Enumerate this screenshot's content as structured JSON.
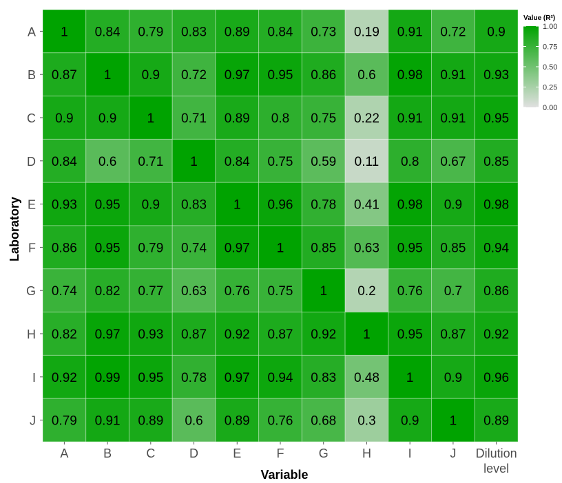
{
  "chart_data": {
    "type": "heatmap",
    "xlabel": "Variable",
    "ylabel": "Laboratory",
    "x_categories": [
      "A",
      "B",
      "C",
      "D",
      "E",
      "F",
      "G",
      "H",
      "I",
      "J",
      "Dilution level"
    ],
    "y_categories": [
      "A",
      "B",
      "C",
      "D",
      "E",
      "F",
      "G",
      "H",
      "I",
      "J"
    ],
    "values": [
      [
        1,
        0.84,
        0.79,
        0.83,
        0.89,
        0.84,
        0.73,
        0.19,
        0.91,
        0.72,
        0.9
      ],
      [
        0.87,
        1,
        0.9,
        0.72,
        0.97,
        0.95,
        0.86,
        0.6,
        0.98,
        0.91,
        0.93
      ],
      [
        0.9,
        0.9,
        1,
        0.71,
        0.89,
        0.8,
        0.75,
        0.22,
        0.91,
        0.91,
        0.95
      ],
      [
        0.84,
        0.6,
        0.71,
        1,
        0.84,
        0.75,
        0.59,
        0.11,
        0.8,
        0.67,
        0.85
      ],
      [
        0.93,
        0.95,
        0.9,
        0.83,
        1,
        0.96,
        0.78,
        0.41,
        0.98,
        0.9,
        0.98
      ],
      [
        0.86,
        0.95,
        0.79,
        0.74,
        0.97,
        1,
        0.85,
        0.63,
        0.95,
        0.85,
        0.94
      ],
      [
        0.74,
        0.82,
        0.77,
        0.63,
        0.76,
        0.75,
        1,
        0.2,
        0.76,
        0.7,
        0.86
      ],
      [
        0.82,
        0.97,
        0.93,
        0.87,
        0.92,
        0.87,
        0.92,
        1,
        0.95,
        0.87,
        0.92
      ],
      [
        0.92,
        0.99,
        0.95,
        0.78,
        0.97,
        0.94,
        0.83,
        0.48,
        1,
        0.9,
        0.96
      ],
      [
        0.79,
        0.91,
        0.89,
        0.6,
        0.89,
        0.76,
        0.68,
        0.3,
        0.9,
        1,
        0.89
      ]
    ],
    "legend": {
      "title": "Value (R²)",
      "ticks": [
        1.0,
        0.75,
        0.5,
        0.25,
        0.0
      ],
      "tick_labels": [
        "1.00",
        "0.75",
        "0.50",
        "0.25",
        "0.00"
      ],
      "placement": "top-right"
    },
    "color_scale": {
      "low": "#e0e0e0",
      "high": "#00a300",
      "range": [
        0,
        1
      ]
    },
    "grid": true
  }
}
